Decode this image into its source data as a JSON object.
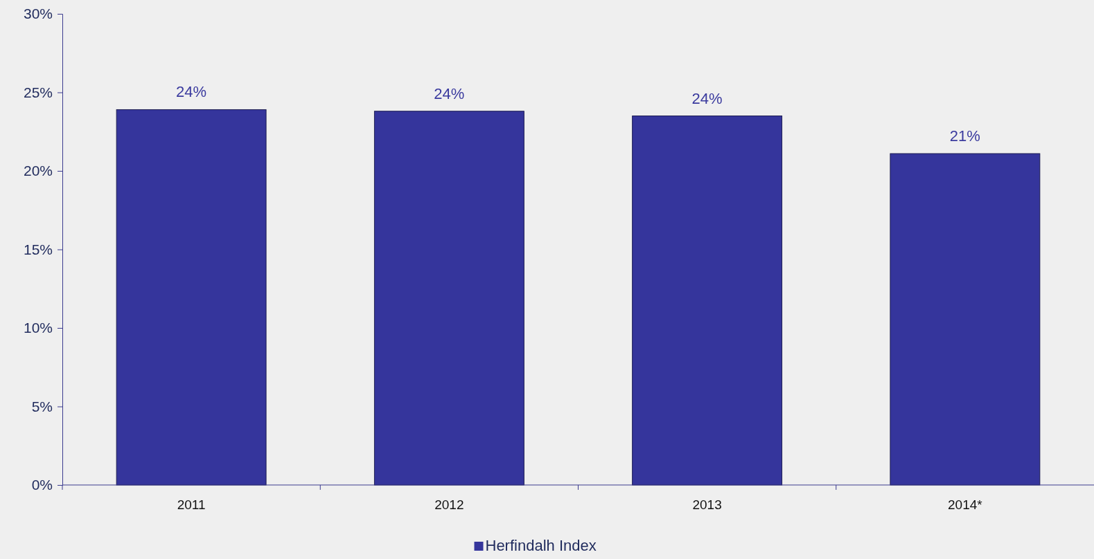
{
  "chart_data": {
    "type": "bar",
    "categories": [
      "2011",
      "2012",
      "2013",
      "2014*"
    ],
    "series": [
      {
        "name": "Herfindalh Index",
        "color": "#35359c",
        "values": [
          23.9,
          23.8,
          23.5,
          21.1
        ],
        "value_labels": [
          "24%",
          "24%",
          "24%",
          "21%"
        ]
      }
    ],
    "ylim": [
      0,
      30
    ],
    "yticks": [
      {
        "value": 0,
        "label": "0%"
      },
      {
        "value": 5,
        "label": "5%"
      },
      {
        "value": 10,
        "label": "10%"
      },
      {
        "value": 15,
        "label": "15%"
      },
      {
        "value": 20,
        "label": "20%"
      },
      {
        "value": 25,
        "label": "25%"
      },
      {
        "value": 30,
        "label": "30%"
      }
    ],
    "grid": false,
    "legend": "bottom"
  }
}
